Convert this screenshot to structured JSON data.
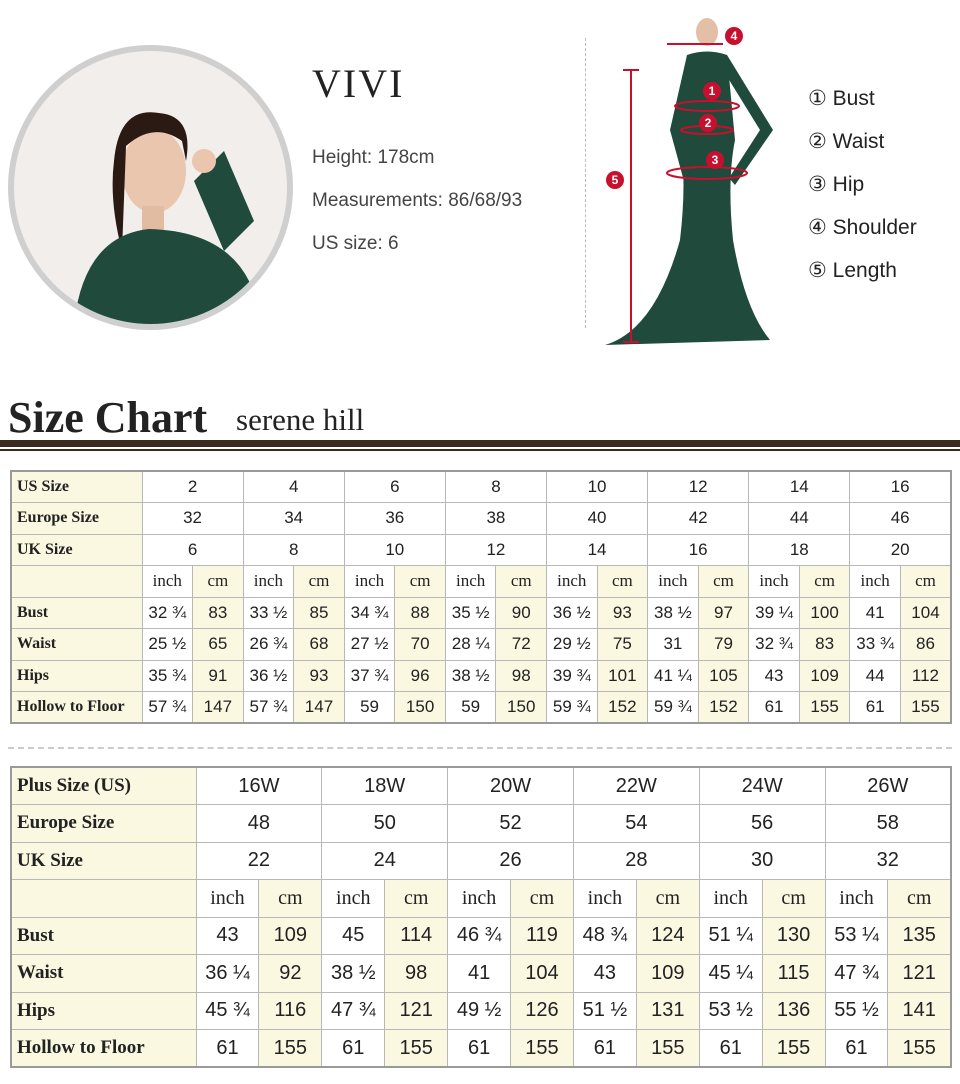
{
  "model": {
    "name": "VIVI",
    "height_label": "Height:",
    "height": "178cm",
    "measurements_label": "Measurements:",
    "measurements": "86/68/93",
    "us_size_label": "US size:",
    "us_size": "6"
  },
  "legend": [
    {
      "num": "①",
      "label": "Bust"
    },
    {
      "num": "②",
      "label": "Waist"
    },
    {
      "num": "③",
      "label": "Hip"
    },
    {
      "num": "④",
      "label": "Shoulder"
    },
    {
      "num": "⑤",
      "label": "Length"
    }
  ],
  "markers": [
    "1",
    "2",
    "3",
    "4",
    "5"
  ],
  "title": "Size Chart",
  "brand": "serene hill",
  "colors": {
    "dress": "#1f4a3c",
    "marker": "#c8102e",
    "rule": "#3a2a20",
    "cell_highlight": "#fbf8e1"
  },
  "standard": {
    "us_label": "US Size",
    "us": [
      "2",
      "4",
      "6",
      "8",
      "10",
      "12",
      "14",
      "16"
    ],
    "eu_label": "Europe Size",
    "eu": [
      "32",
      "34",
      "36",
      "38",
      "40",
      "42",
      "44",
      "46"
    ],
    "uk_label": "UK Size",
    "uk": [
      "6",
      "8",
      "10",
      "12",
      "14",
      "16",
      "18",
      "20"
    ],
    "unit_inch": "inch",
    "unit_cm": "cm",
    "rows": [
      {
        "label": "Bust",
        "values": [
          "32 ¾",
          "83",
          "33 ½",
          "85",
          "34 ¾",
          "88",
          "35 ½",
          "90",
          "36 ½",
          "93",
          "38 ½",
          "97",
          "39 ¼",
          "100",
          "41",
          "104"
        ]
      },
      {
        "label": "Waist",
        "values": [
          "25 ½",
          "65",
          "26 ¾",
          "68",
          "27 ½",
          "70",
          "28 ¼",
          "72",
          "29 ½",
          "75",
          "31",
          "79",
          "32 ¾",
          "83",
          "33 ¾",
          "86"
        ]
      },
      {
        "label": "Hips",
        "values": [
          "35 ¾",
          "91",
          "36 ½",
          "93",
          "37 ¾",
          "96",
          "38 ½",
          "98",
          "39 ¾",
          "101",
          "41 ¼",
          "105",
          "43",
          "109",
          "44",
          "112"
        ]
      },
      {
        "label": "Hollow to Floor",
        "values": [
          "57 ¾",
          "147",
          "57 ¾",
          "147",
          "59",
          "150",
          "59",
          "150",
          "59 ¾",
          "152",
          "59 ¾",
          "152",
          "61",
          "155",
          "61",
          "155"
        ]
      }
    ]
  },
  "plus": {
    "us_label": "Plus Size (US)",
    "us": [
      "16W",
      "18W",
      "20W",
      "22W",
      "24W",
      "26W"
    ],
    "eu_label": "Europe Size",
    "eu": [
      "48",
      "50",
      "52",
      "54",
      "56",
      "58"
    ],
    "uk_label": "UK Size",
    "uk": [
      "22",
      "24",
      "26",
      "28",
      "30",
      "32"
    ],
    "unit_inch": "inch",
    "unit_cm": "cm",
    "rows": [
      {
        "label": "Bust",
        "values": [
          "43",
          "109",
          "45",
          "114",
          "46 ¾",
          "119",
          "48 ¾",
          "124",
          "51 ¼",
          "130",
          "53 ¼",
          "135"
        ]
      },
      {
        "label": "Waist",
        "values": [
          "36 ¼",
          "92",
          "38 ½",
          "98",
          "41",
          "104",
          "43",
          "109",
          "45 ¼",
          "115",
          "47 ¾",
          "121"
        ]
      },
      {
        "label": "Hips",
        "values": [
          "45 ¾",
          "116",
          "47 ¾",
          "121",
          "49 ½",
          "126",
          "51 ½",
          "131",
          "53 ½",
          "136",
          "55 ½",
          "141"
        ]
      },
      {
        "label": "Hollow to Floor",
        "values": [
          "61",
          "155",
          "61",
          "155",
          "61",
          "155",
          "61",
          "155",
          "61",
          "155",
          "61",
          "155"
        ]
      }
    ]
  }
}
